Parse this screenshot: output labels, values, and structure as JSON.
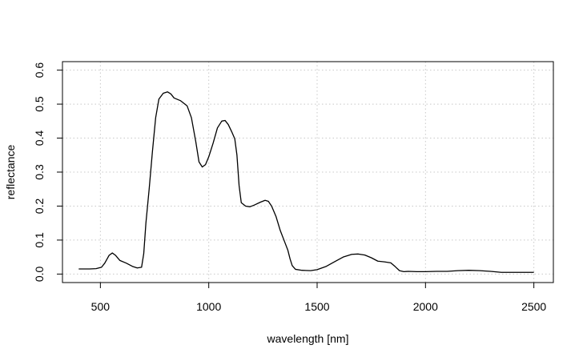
{
  "chart_data": {
    "type": "line",
    "title": "",
    "xlabel": "wavelength [nm]",
    "ylabel": "reflectance",
    "xlim": [
      325,
      2590
    ],
    "ylim": [
      -0.025,
      0.625
    ],
    "xticks": [
      500,
      1000,
      1500,
      2000,
      2500
    ],
    "yticks": [
      0.0,
      0.1,
      0.2,
      0.3,
      0.4,
      0.5,
      0.6
    ],
    "xtick_labels": [
      "500",
      "1000",
      "1500",
      "2000",
      "2500"
    ],
    "ytick_labels": [
      "0.0",
      "0.1",
      "0.2",
      "0.3",
      "0.4",
      "0.5",
      "0.6"
    ],
    "grid": true,
    "legend": "none",
    "series": [
      {
        "color": "#000000",
        "points": [
          [
            400,
            0.015
          ],
          [
            450,
            0.015
          ],
          [
            480,
            0.016
          ],
          [
            505,
            0.02
          ],
          [
            520,
            0.032
          ],
          [
            540,
            0.055
          ],
          [
            555,
            0.062
          ],
          [
            570,
            0.055
          ],
          [
            590,
            0.04
          ],
          [
            620,
            0.032
          ],
          [
            650,
            0.022
          ],
          [
            670,
            0.018
          ],
          [
            690,
            0.02
          ],
          [
            700,
            0.06
          ],
          [
            710,
            0.15
          ],
          [
            725,
            0.25
          ],
          [
            740,
            0.36
          ],
          [
            755,
            0.46
          ],
          [
            770,
            0.515
          ],
          [
            790,
            0.532
          ],
          [
            810,
            0.536
          ],
          [
            825,
            0.53
          ],
          [
            840,
            0.518
          ],
          [
            870,
            0.51
          ],
          [
            900,
            0.495
          ],
          [
            920,
            0.46
          ],
          [
            940,
            0.39
          ],
          [
            955,
            0.33
          ],
          [
            970,
            0.315
          ],
          [
            985,
            0.322
          ],
          [
            1000,
            0.345
          ],
          [
            1020,
            0.385
          ],
          [
            1040,
            0.43
          ],
          [
            1060,
            0.45
          ],
          [
            1075,
            0.452
          ],
          [
            1090,
            0.44
          ],
          [
            1105,
            0.42
          ],
          [
            1120,
            0.398
          ],
          [
            1130,
            0.35
          ],
          [
            1140,
            0.26
          ],
          [
            1150,
            0.21
          ],
          [
            1170,
            0.2
          ],
          [
            1190,
            0.198
          ],
          [
            1210,
            0.203
          ],
          [
            1240,
            0.212
          ],
          [
            1260,
            0.217
          ],
          [
            1275,
            0.214
          ],
          [
            1290,
            0.2
          ],
          [
            1310,
            0.17
          ],
          [
            1330,
            0.128
          ],
          [
            1350,
            0.095
          ],
          [
            1365,
            0.07
          ],
          [
            1375,
            0.045
          ],
          [
            1385,
            0.025
          ],
          [
            1400,
            0.014
          ],
          [
            1430,
            0.011
          ],
          [
            1470,
            0.01
          ],
          [
            1500,
            0.013
          ],
          [
            1540,
            0.022
          ],
          [
            1580,
            0.036
          ],
          [
            1620,
            0.05
          ],
          [
            1660,
            0.058
          ],
          [
            1690,
            0.059
          ],
          [
            1720,
            0.056
          ],
          [
            1750,
            0.048
          ],
          [
            1780,
            0.038
          ],
          [
            1810,
            0.036
          ],
          [
            1840,
            0.033
          ],
          [
            1860,
            0.022
          ],
          [
            1880,
            0.01
          ],
          [
            1900,
            0.007
          ],
          [
            1920,
            0.008
          ],
          [
            1960,
            0.007
          ],
          [
            2000,
            0.007
          ],
          [
            2050,
            0.008
          ],
          [
            2100,
            0.008
          ],
          [
            2150,
            0.01
          ],
          [
            2200,
            0.011
          ],
          [
            2250,
            0.01
          ],
          [
            2300,
            0.008
          ],
          [
            2350,
            0.005
          ],
          [
            2400,
            0.005
          ],
          [
            2450,
            0.005
          ],
          [
            2500,
            0.005
          ]
        ]
      }
    ]
  }
}
